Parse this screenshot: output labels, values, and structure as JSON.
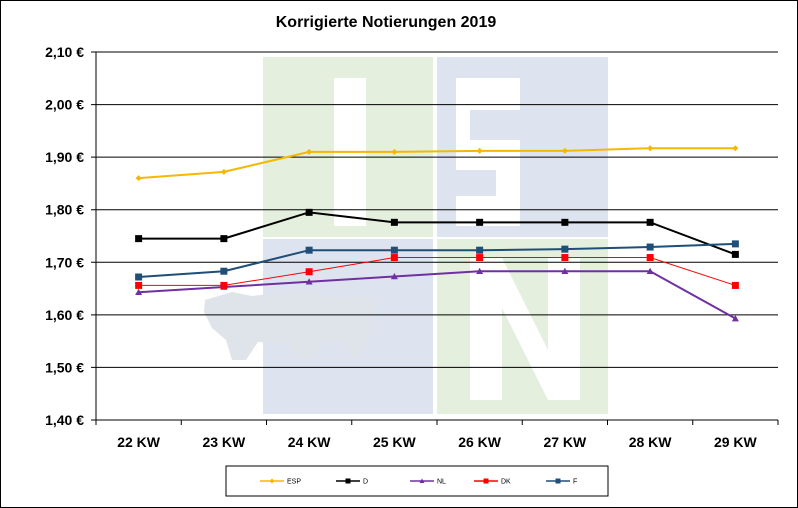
{
  "chart_data": {
    "type": "line",
    "title": "Korrigierte Notierungen 2019",
    "categories": [
      "22 KW",
      "23 KW",
      "24 KW",
      "25 KW",
      "26 KW",
      "27 KW",
      "28 KW",
      "29 KW"
    ],
    "ylim": [
      1.4,
      2.1
    ],
    "yticks": [
      "1,40 €",
      "1,50 €",
      "1,60 €",
      "1,70 €",
      "1,80 €",
      "1,90 €",
      "2,00 €",
      "2,10 €"
    ],
    "ytick_values": [
      1.4,
      1.5,
      1.6,
      1.7,
      1.8,
      1.9,
      2.0,
      2.1
    ],
    "grid": true,
    "legend_position": "bottom",
    "series": [
      {
        "name": "ESP",
        "color": "#f5b800",
        "marker": "diamond",
        "values": [
          1.86,
          1.872,
          1.91,
          1.91,
          1.912,
          1.912,
          1.917,
          1.917
        ]
      },
      {
        "name": "D",
        "color": "#000000",
        "marker": "square",
        "values": [
          1.745,
          1.745,
          1.795,
          1.776,
          1.776,
          1.776,
          1.776,
          1.715
        ]
      },
      {
        "name": "NL",
        "color": "#7030a0",
        "marker": "triangle",
        "values": [
          1.643,
          1.653,
          1.663,
          1.673,
          1.683,
          1.683,
          1.683,
          1.593
        ]
      },
      {
        "name": "DK",
        "color": "#ff0000",
        "marker": "square",
        "values": [
          1.656,
          1.656,
          1.682,
          1.709,
          1.709,
          1.709,
          1.709,
          1.656
        ]
      },
      {
        "name": "F",
        "color": "#1f4e79",
        "marker": "square",
        "values": [
          1.672,
          1.683,
          1.723,
          1.723,
          1.723,
          1.725,
          1.729,
          1.735
        ]
      }
    ]
  }
}
